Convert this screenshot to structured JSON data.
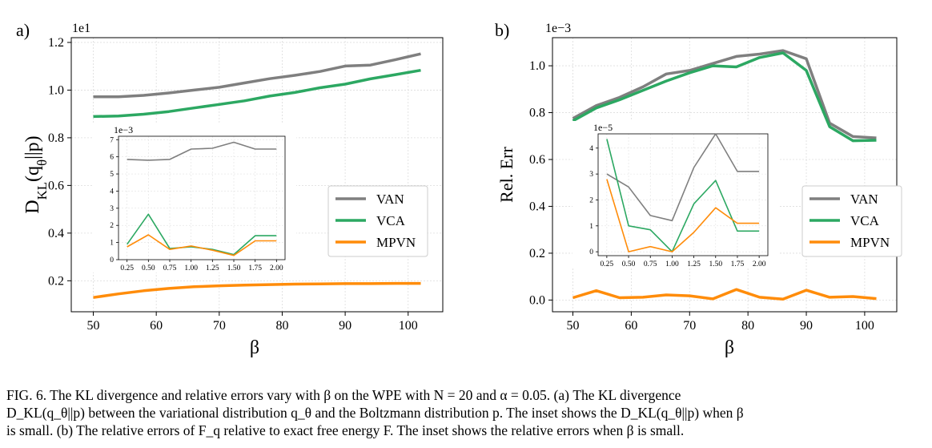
{
  "figure": {
    "caption_lines": [
      "FIG. 6.   The KL divergence and relative errors vary with β on the WPE with N = 20 and α = 0.05. (a) The KL divergence",
      "D_KL(q_θ||p) between the variational distribution q_θ and the Boltzmann distribution p. The inset shows the D_KL(q_θ||p) when β",
      "is small. (b) The relative errors of F_q relative to exact free energy F. The inset shows the relative errors when β is small."
    ]
  },
  "colors": {
    "VAN": "#7f7f7f",
    "VCA": "#2ca862",
    "MPVN": "#ff8c0a"
  },
  "chart_data": [
    {
      "panel_label": "a)",
      "type": "line",
      "offset_text": "1e1",
      "xlabel": "β",
      "ylabel": "D_KL(q_θ||p)",
      "xlim": [
        46.5,
        105.5
      ],
      "ylim": [
        0.07,
        1.22
      ],
      "xticks": [
        50,
        60,
        70,
        80,
        90,
        100
      ],
      "yticks": [
        0.2,
        0.4,
        0.6,
        0.8,
        1.0,
        1.2
      ],
      "ytick_labels": [
        "0.2",
        "0.4",
        "0.6",
        "0.8",
        "1.0",
        "1.2"
      ],
      "grid": true,
      "legend_position": "center-right",
      "series": [
        {
          "name": "VAN",
          "x": [
            50,
            54,
            58,
            62,
            66,
            70,
            74,
            78,
            82,
            86,
            90,
            94,
            98,
            102
          ],
          "y": [
            0.972,
            0.972,
            0.978,
            0.988,
            1.0,
            1.012,
            1.03,
            1.048,
            1.062,
            1.078,
            1.101,
            1.105,
            1.128,
            1.152
          ]
        },
        {
          "name": "VCA",
          "x": [
            50,
            54,
            58,
            62,
            66,
            70,
            74,
            78,
            82,
            86,
            90,
            94,
            98,
            102
          ],
          "y": [
            0.889,
            0.891,
            0.899,
            0.91,
            0.925,
            0.94,
            0.955,
            0.975,
            0.99,
            1.01,
            1.025,
            1.047,
            1.065,
            1.083
          ]
        },
        {
          "name": "MPVN",
          "x": [
            50,
            54,
            58,
            62,
            66,
            70,
            74,
            78,
            82,
            86,
            90,
            94,
            98,
            102
          ],
          "y": [
            0.13,
            0.145,
            0.158,
            0.168,
            0.175,
            0.179,
            0.182,
            0.184,
            0.186,
            0.187,
            0.188,
            0.188,
            0.189,
            0.189
          ]
        }
      ],
      "inset": {
        "offset_text": "1e−3",
        "xlim": [
          0.15,
          2.1
        ],
        "ylim": [
          0,
          7.2
        ],
        "xticks": [
          0.25,
          0.5,
          0.75,
          1.0,
          1.25,
          1.5,
          1.75,
          2.0
        ],
        "xtick_labels": [
          "0.25",
          "0.50",
          "0.75",
          "1.00",
          "1.25",
          "1.50",
          "1.75",
          "2.00"
        ],
        "yticks": [
          0,
          1,
          2,
          3,
          4,
          5,
          6,
          7
        ],
        "series": [
          {
            "name": "VAN",
            "x": [
              0.25,
              0.5,
              0.75,
              1.0,
              1.25,
              1.5,
              1.75,
              2.0
            ],
            "y": [
              5.85,
              5.8,
              5.85,
              6.45,
              6.5,
              6.85,
              6.45,
              6.45
            ]
          },
          {
            "name": "VCA",
            "x": [
              0.25,
              0.5,
              0.75,
              1.0,
              1.25,
              1.5,
              1.75,
              2.0
            ],
            "y": [
              0.9,
              2.65,
              0.65,
              0.75,
              0.6,
              0.3,
              1.4,
              1.4
            ]
          },
          {
            "name": "MPVN",
            "x": [
              0.25,
              0.5,
              0.75,
              1.0,
              1.25,
              1.5,
              1.75,
              2.0
            ],
            "y": [
              0.75,
              1.45,
              0.6,
              0.8,
              0.55,
              0.25,
              1.1,
              1.1
            ]
          }
        ]
      }
    },
    {
      "panel_label": "b)",
      "type": "line",
      "offset_text": "1e−3",
      "xlabel": "β",
      "ylabel": "Rel. Err",
      "xlim": [
        46.5,
        105.5
      ],
      "ylim": [
        -0.05,
        1.12
      ],
      "xticks": [
        50,
        60,
        70,
        80,
        90,
        100
      ],
      "yticks": [
        0.0,
        0.2,
        0.4,
        0.6,
        0.8,
        1.0
      ],
      "ytick_labels": [
        "0.0",
        "0.2",
        "0.4",
        "0.6",
        "0.8",
        "1.0"
      ],
      "grid": true,
      "legend_position": "center-right",
      "series": [
        {
          "name": "VAN",
          "x": [
            50,
            54,
            58,
            62,
            66,
            70,
            74,
            78,
            82,
            86,
            90,
            94,
            98,
            102
          ],
          "y": [
            0.775,
            0.83,
            0.865,
            0.91,
            0.965,
            0.98,
            1.01,
            1.04,
            1.05,
            1.065,
            1.03,
            0.755,
            0.698,
            0.692
          ]
        },
        {
          "name": "VCA",
          "x": [
            50,
            54,
            58,
            62,
            66,
            70,
            74,
            78,
            82,
            86,
            90,
            94,
            98,
            102
          ],
          "y": [
            0.765,
            0.82,
            0.855,
            0.895,
            0.935,
            0.97,
            1.0,
            0.995,
            1.035,
            1.055,
            0.98,
            0.74,
            0.68,
            0.682
          ]
        },
        {
          "name": "MPVN",
          "x": [
            50,
            54,
            58,
            62,
            66,
            70,
            74,
            78,
            82,
            86,
            90,
            94,
            98,
            102
          ],
          "y": [
            0.01,
            0.04,
            0.01,
            0.012,
            0.022,
            0.018,
            0.005,
            0.045,
            0.012,
            0.004,
            0.042,
            0.012,
            0.015,
            0.006
          ]
        }
      ],
      "inset": {
        "offset_text": "1e−5",
        "xlim": [
          0.15,
          2.1
        ],
        "ylim": [
          -0.15,
          4.55
        ],
        "xticks": [
          0.25,
          0.5,
          0.75,
          1.0,
          1.25,
          1.5,
          1.75,
          2.0
        ],
        "xtick_labels": [
          "0.25",
          "0.50",
          "0.75",
          "1.00",
          "1.25",
          "1.50",
          "1.75",
          "2.00"
        ],
        "yticks": [
          0,
          1,
          2,
          3,
          4
        ],
        "series": [
          {
            "name": "VAN",
            "x": [
              0.25,
              0.5,
              0.75,
              1.0,
              1.25,
              1.5,
              1.75,
              2.0
            ],
            "y": [
              3.0,
              2.5,
              1.4,
              1.2,
              3.25,
              4.55,
              3.1,
              3.1
            ]
          },
          {
            "name": "VCA",
            "x": [
              0.25,
              0.5,
              0.75,
              1.0,
              1.25,
              1.5,
              1.75,
              2.0
            ],
            "y": [
              4.35,
              1.0,
              0.85,
              0.0,
              1.85,
              2.75,
              0.8,
              0.8
            ]
          },
          {
            "name": "MPVN",
            "x": [
              0.25,
              0.5,
              0.75,
              1.0,
              1.25,
              1.5,
              1.75,
              2.0
            ],
            "y": [
              2.8,
              0.0,
              0.2,
              0.0,
              0.75,
              1.7,
              1.1,
              1.1
            ]
          }
        ]
      }
    }
  ]
}
